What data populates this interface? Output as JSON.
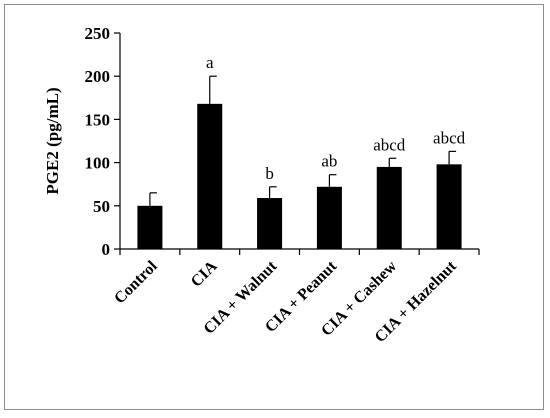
{
  "chart_data": {
    "type": "bar",
    "title": "",
    "xlabel": "",
    "ylabel": "PGE2 (pg/mL)",
    "ylim": [
      0,
      250
    ],
    "yticks": [
      0,
      50,
      100,
      150,
      200,
      250
    ],
    "grid": false,
    "legend": "none",
    "bar_color": "#000000",
    "categories": [
      "Control",
      "CIA",
      "CIA + Walnut",
      "CIA + Peanut",
      "CIA + Cashew",
      "CIA + Hazelnut"
    ],
    "values": [
      50,
      168,
      59,
      72,
      95,
      98
    ],
    "errors": [
      15,
      32,
      13,
      14,
      10,
      15
    ],
    "significance": [
      "",
      "a",
      "b",
      "ab",
      "abcd",
      "abcd"
    ]
  }
}
